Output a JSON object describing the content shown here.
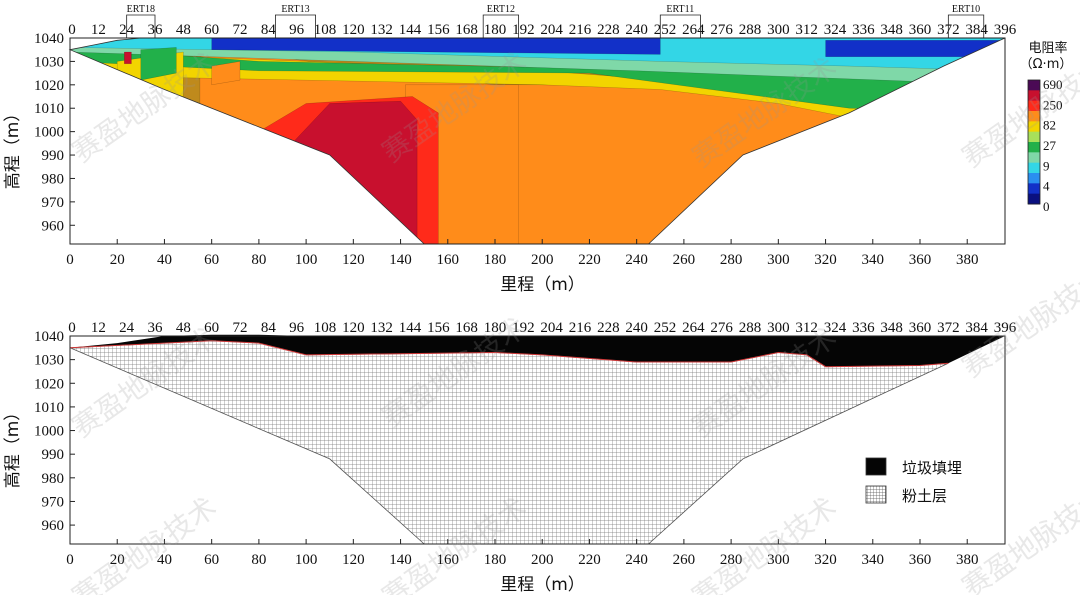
{
  "watermark": "赛盈地脉技术",
  "chart_data": [
    {
      "type": "heatmap",
      "subtype": "resistivity-section",
      "xlabel": "里程（m）",
      "ylabel": "高程（m）",
      "xlim": [
        0,
        396
      ],
      "ylim": [
        952,
        1040
      ],
      "x_ticks": [
        0,
        20,
        40,
        60,
        80,
        100,
        120,
        140,
        160,
        180,
        200,
        220,
        240,
        260,
        280,
        300,
        320,
        340,
        360,
        380
      ],
      "y_ticks": [
        960,
        970,
        980,
        990,
        1000,
        1010,
        1020,
        1030,
        1040
      ],
      "station_labels": [
        0,
        12,
        24,
        36,
        48,
        60,
        72,
        84,
        96,
        108,
        120,
        132,
        144,
        156,
        168,
        180,
        192,
        204,
        216,
        228,
        240,
        252,
        264,
        276,
        288,
        300,
        312,
        324,
        336,
        348,
        360,
        372,
        384,
        396
      ],
      "survey_lines": [
        {
          "name": "ERT18",
          "x_start": 24,
          "x_end": 36
        },
        {
          "name": "ERT13",
          "x_start": 87,
          "x_end": 104
        },
        {
          "name": "ERT12",
          "x_start": 175,
          "x_end": 190
        },
        {
          "name": "ERT11",
          "x_start": 250,
          "x_end": 267
        },
        {
          "name": "ERT10",
          "x_start": 372,
          "x_end": 387
        }
      ],
      "colorbar": {
        "title_lines": [
          "电阻率",
          "（Ω·m）"
        ],
        "labels": [
          "690",
          "250",
          "82",
          "27",
          "9",
          "4",
          "0"
        ],
        "colors": [
          "#4b0a55",
          "#c8102e",
          "#ff2a1a",
          "#ff8c1a",
          "#f2d400",
          "#a8e05a",
          "#22b04a",
          "#7fd8a8",
          "#33d6e6",
          "#2a8ff0",
          "#1230c8",
          "#0a1080"
        ]
      },
      "bands": [
        {
          "color": "#bf8a1c",
          "top": [
            [
              0,
              1035
            ],
            [
              396,
              1035
            ]
          ],
          "bottom": [
            [
              0,
              952
            ],
            [
              396,
              952
            ]
          ]
        },
        {
          "color": "#ff8c1a",
          "top": [
            [
              55,
              1032
            ],
            [
              70,
              1034
            ],
            [
              180,
              1020
            ],
            [
              396,
              1020
            ]
          ],
          "bottom": [
            [
              55,
              952
            ],
            [
              396,
              952
            ]
          ]
        },
        {
          "color": "#ff8c1a",
          "top": [
            [
              142,
              1020
            ],
            [
              190,
              1020
            ]
          ],
          "bottom": [
            [
              142,
              952
            ],
            [
              190,
              952
            ]
          ]
        },
        {
          "color": "#ff2a1a",
          "top": [
            [
              80,
              1000
            ],
            [
              100,
              1012
            ],
            [
              145,
              1015
            ],
            [
              156,
              1008
            ]
          ],
          "bottom": [
            [
              80,
              952
            ],
            [
              156,
              952
            ]
          ]
        },
        {
          "color": "#c8102e",
          "top": [
            [
              95,
              996
            ],
            [
              110,
              1012
            ],
            [
              140,
              1013
            ],
            [
              147,
              1005
            ]
          ],
          "bottom": [
            [
              95,
              952
            ],
            [
              147,
              952
            ]
          ]
        },
        {
          "color": "#f2d400",
          "top": [
            [
              0,
              1034
            ],
            [
              200,
              1026
            ],
            [
              330,
              1016
            ],
            [
              396,
              1016
            ]
          ],
          "bottom": [
            [
              0,
              1024
            ],
            [
              200,
              1020
            ],
            [
              250,
              1018
            ],
            [
              300,
              1012
            ],
            [
              340,
              1004
            ],
            [
              396,
              1004
            ]
          ]
        },
        {
          "color": "#22b04a",
          "top": [
            [
              0,
              1036
            ],
            [
              80,
              1030
            ],
            [
              220,
              1027
            ],
            [
              396,
              1021
            ]
          ],
          "bottom": [
            [
              0,
              1030
            ],
            [
              80,
              1026
            ],
            [
              220,
              1025
            ],
            [
              330,
              1010
            ],
            [
              396,
              1008
            ]
          ]
        },
        {
          "color": "#7fd8a8",
          "top": [
            [
              0,
              1038
            ],
            [
              120,
              1036
            ],
            [
              240,
              1033
            ],
            [
              396,
              1030
            ]
          ],
          "bottom": [
            [
              0,
              1034
            ],
            [
              120,
              1030
            ],
            [
              240,
              1026
            ],
            [
              396,
              1020
            ]
          ]
        },
        {
          "color": "#33d6e6",
          "top": [
            [
              0,
              1040
            ],
            [
              396,
              1040
            ]
          ],
          "bottom": [
            [
              0,
              1036
            ],
            [
              120,
              1034
            ],
            [
              250,
              1030
            ],
            [
              330,
              1028
            ],
            [
              396,
              1026
            ]
          ]
        },
        {
          "color": "#1230c8",
          "top": [
            [
              60,
              1040
            ],
            [
              250,
              1040
            ]
          ],
          "bottom": [
            [
              60,
              1035
            ],
            [
              250,
              1033
            ]
          ]
        },
        {
          "color": "#1230c8",
          "top": [
            [
              320,
              1039
            ],
            [
              396,
              1039
            ]
          ],
          "bottom": [
            [
              320,
              1032
            ],
            [
              396,
              1032
            ]
          ]
        },
        {
          "color": "#f2d400",
          "top": [
            [
              20,
              1030
            ],
            [
              48,
              1034
            ]
          ],
          "bottom": [
            [
              20,
              1004
            ],
            [
              48,
              1012
            ]
          ]
        },
        {
          "color": "#22b04a",
          "top": [
            [
              30,
              1035
            ],
            [
              45,
              1036
            ]
          ],
          "bottom": [
            [
              30,
              1022
            ],
            [
              45,
              1025
            ]
          ]
        },
        {
          "color": "#ff8c1a",
          "top": [
            [
              60,
              1028
            ],
            [
              72,
              1030
            ]
          ],
          "bottom": [
            [
              60,
              1020
            ],
            [
              72,
              1022
            ]
          ]
        },
        {
          "color": "#c8102e",
          "top": [
            [
              23,
              1034
            ],
            [
              26,
              1034
            ]
          ],
          "bottom": [
            [
              23,
              1029
            ],
            [
              26,
              1029
            ]
          ]
        }
      ]
    },
    {
      "type": "area",
      "subtype": "geological-interpretation",
      "xlabel": "里程（m）",
      "ylabel": "高程（m）",
      "xlim": [
        0,
        396
      ],
      "ylim": [
        952,
        1040
      ],
      "x_ticks": [
        0,
        20,
        40,
        60,
        80,
        100,
        120,
        140,
        160,
        180,
        200,
        220,
        240,
        260,
        280,
        300,
        320,
        340,
        360,
        380
      ],
      "y_ticks": [
        960,
        970,
        980,
        990,
        1000,
        1010,
        1020,
        1030,
        1040
      ],
      "station_labels": [
        0,
        12,
        24,
        36,
        48,
        60,
        72,
        84,
        96,
        108,
        120,
        132,
        144,
        156,
        168,
        180,
        192,
        204,
        216,
        228,
        240,
        252,
        264,
        276,
        288,
        300,
        312,
        324,
        336,
        348,
        360,
        372,
        384,
        396
      ],
      "surface": [
        [
          0,
          1035
        ],
        [
          20,
          1037
        ],
        [
          40,
          1040
        ],
        [
          60,
          1040.5
        ],
        [
          80,
          1040.5
        ],
        [
          100,
          1040
        ],
        [
          140,
          1040
        ],
        [
          200,
          1040
        ],
        [
          260,
          1040
        ],
        [
          320,
          1040
        ],
        [
          360,
          1040
        ],
        [
          396,
          1040
        ]
      ],
      "fill_bottom": [
        [
          0,
          1035
        ],
        [
          60,
          1038
        ],
        [
          80,
          1037
        ],
        [
          100,
          1032
        ],
        [
          180,
          1033
        ],
        [
          200,
          1032
        ],
        [
          240,
          1029
        ],
        [
          280,
          1029
        ],
        [
          300,
          1033
        ],
        [
          312,
          1032
        ],
        [
          320,
          1027
        ],
        [
          360,
          1027.5
        ],
        [
          372,
          1028.5
        ],
        [
          396,
          1040
        ]
      ],
      "silt_bottom": [
        [
          0,
          1035
        ],
        [
          110,
          988
        ],
        [
          150,
          952
        ],
        [
          245,
          952
        ],
        [
          285,
          988
        ],
        [
          372,
          1028.5
        ]
      ],
      "legend": [
        {
          "label": "垃圾填埋",
          "swatch": "fill"
        },
        {
          "label": "粉土层",
          "swatch": "grid"
        }
      ]
    }
  ]
}
